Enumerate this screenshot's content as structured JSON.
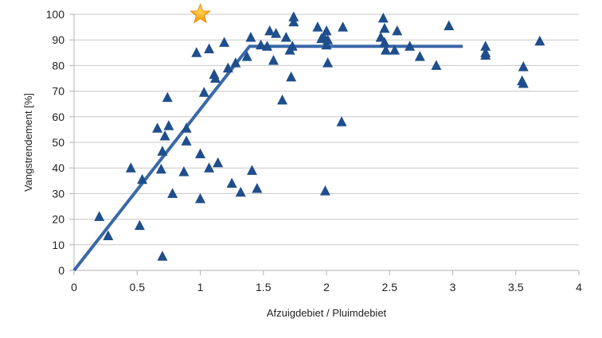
{
  "chart_data": {
    "type": "scatter",
    "title": "",
    "xlabel": "Afzuigdebiet / Pluimdebiet",
    "ylabel": "Vangstrendement [%]",
    "xlim": [
      0,
      4
    ],
    "ylim": [
      0,
      100
    ],
    "x_ticks": [
      "0",
      "0.5",
      "1",
      "1.5",
      "2",
      "2.5",
      "3",
      "3.5",
      "4"
    ],
    "y_ticks": [
      "0",
      "10",
      "20",
      "30",
      "40",
      "50",
      "60",
      "70",
      "80",
      "90",
      "100"
    ],
    "grid": "horizontal",
    "legend": "none",
    "series": [
      {
        "type": "scatter",
        "marker": "triangle",
        "color": "#1f4e8c",
        "points": [
          [
            0.2,
            21
          ],
          [
            0.27,
            13.5
          ],
          [
            0.45,
            40
          ],
          [
            0.52,
            17.5
          ],
          [
            0.54,
            35.5
          ],
          [
            0.66,
            55.5
          ],
          [
            0.69,
            39.5
          ],
          [
            0.7,
            46.5
          ],
          [
            0.7,
            5.5
          ],
          [
            0.72,
            52.5
          ],
          [
            0.74,
            67.5
          ],
          [
            0.75,
            56.5
          ],
          [
            0.78,
            30
          ],
          [
            0.87,
            38.5
          ],
          [
            0.89,
            55.5
          ],
          [
            0.89,
            50.5
          ],
          [
            0.97,
            85
          ],
          [
            1.0,
            45.5
          ],
          [
            1.0,
            28
          ],
          [
            1.03,
            69.5
          ],
          [
            1.07,
            86.5
          ],
          [
            1.07,
            40
          ],
          [
            1.11,
            76.5
          ],
          [
            1.12,
            75
          ],
          [
            1.14,
            42
          ],
          [
            1.19,
            89
          ],
          [
            1.22,
            79
          ],
          [
            1.25,
            34
          ],
          [
            1.28,
            81
          ],
          [
            1.32,
            30.5
          ],
          [
            1.37,
            83.5
          ],
          [
            1.4,
            91
          ],
          [
            1.41,
            39
          ],
          [
            1.45,
            32
          ],
          [
            1.48,
            88
          ],
          [
            1.53,
            87.5
          ],
          [
            1.55,
            93.5
          ],
          [
            1.58,
            82
          ],
          [
            1.6,
            92.5
          ],
          [
            1.65,
            66.5
          ],
          [
            1.68,
            91
          ],
          [
            1.71,
            86
          ],
          [
            1.72,
            75.5
          ],
          [
            1.73,
            87.5
          ],
          [
            1.74,
            99
          ],
          [
            1.74,
            97
          ],
          [
            1.93,
            95
          ],
          [
            1.96,
            90.5
          ],
          [
            1.98,
            91
          ],
          [
            1.99,
            31
          ],
          [
            2.0,
            93.5
          ],
          [
            2.0,
            88
          ],
          [
            2.01,
            81
          ],
          [
            2.01,
            90
          ],
          [
            2.12,
            58
          ],
          [
            2.13,
            95
          ],
          [
            2.43,
            91
          ],
          [
            2.45,
            98.5
          ],
          [
            2.46,
            94.5
          ],
          [
            2.46,
            89
          ],
          [
            2.47,
            86
          ],
          [
            2.54,
            86
          ],
          [
            2.56,
            93.5
          ],
          [
            2.66,
            87.5
          ],
          [
            2.74,
            83.5
          ],
          [
            2.87,
            80
          ],
          [
            2.97,
            95.5
          ],
          [
            3.26,
            87.5
          ],
          [
            3.26,
            85
          ],
          [
            3.26,
            84
          ],
          [
            3.55,
            74
          ],
          [
            3.56,
            73
          ],
          [
            3.56,
            79.5
          ],
          [
            3.69,
            89.5
          ]
        ]
      },
      {
        "type": "line",
        "color": "#3a68a8",
        "points": [
          [
            0,
            0
          ],
          [
            1.39,
            87.5
          ],
          [
            3.08,
            87.5
          ]
        ]
      },
      {
        "type": "highlight",
        "marker": "star",
        "color": "#f6a800",
        "points": [
          [
            1.0,
            100
          ]
        ]
      }
    ]
  }
}
